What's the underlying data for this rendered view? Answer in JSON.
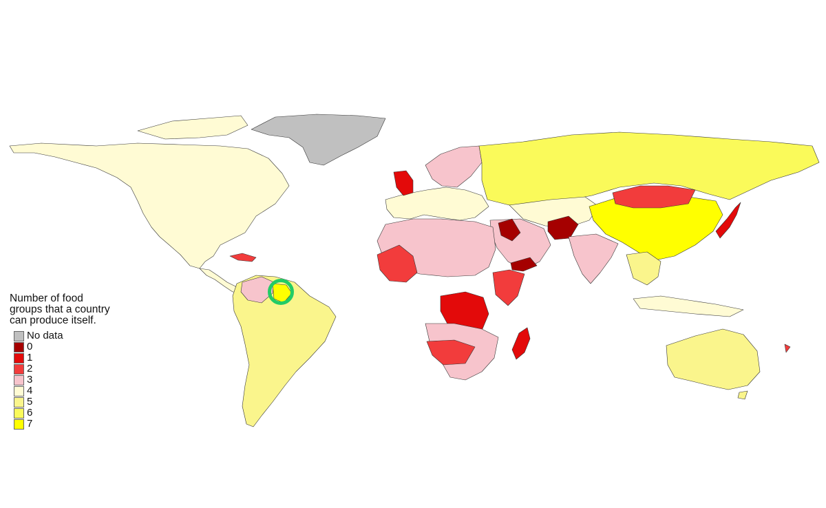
{
  "legend": {
    "title": "Number of food\ngroups that a country\ncan produce itself.",
    "items": [
      {
        "label": "No data",
        "color": "#c0c0c0"
      },
      {
        "label": "0",
        "color": "#a50000"
      },
      {
        "label": "1",
        "color": "#e30a0a"
      },
      {
        "label": "2",
        "color": "#f23c3c"
      },
      {
        "label": "3",
        "color": "#f7c4cc"
      },
      {
        "label": "4",
        "color": "#fffbd4"
      },
      {
        "label": "5",
        "color": "#faf58c"
      },
      {
        "label": "6",
        "color": "#fafa5a"
      },
      {
        "label": "7",
        "color": "#ffff00"
      }
    ]
  },
  "regions": [
    {
      "name": "north-america",
      "value": "4"
    },
    {
      "name": "greenland",
      "value": "No data"
    },
    {
      "name": "south-america",
      "value": "5"
    },
    {
      "name": "russia",
      "value": "6"
    },
    {
      "name": "china",
      "value": "7"
    },
    {
      "name": "mongolia",
      "value": "2"
    },
    {
      "name": "australia",
      "value": "5"
    },
    {
      "name": "central-africa",
      "value": "1"
    },
    {
      "name": "southern-africa",
      "value": "3"
    },
    {
      "name": "madagascar",
      "value": "1"
    },
    {
      "name": "afghanistan",
      "value": "0"
    },
    {
      "name": "yemen",
      "value": "0"
    },
    {
      "name": "iraq",
      "value": "0"
    },
    {
      "name": "japan",
      "value": "1"
    },
    {
      "name": "india",
      "value": "3"
    },
    {
      "name": "scandinavia",
      "value": "3"
    },
    {
      "name": "united-kingdom",
      "value": "1"
    },
    {
      "name": "guyana",
      "value": "7"
    }
  ]
}
